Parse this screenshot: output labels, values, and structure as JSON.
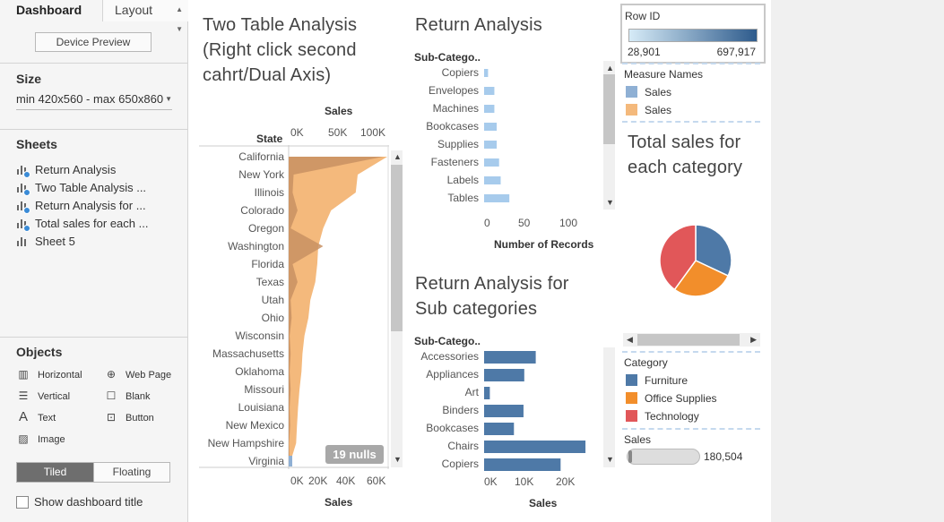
{
  "left_pane": {
    "tabs": {
      "dashboard": "Dashboard",
      "layout": "Layout"
    },
    "device_preview": "Device Preview",
    "size": {
      "title": "Size",
      "value": "min 420x560 - max 650x860"
    },
    "sheets": {
      "title": "Sheets",
      "items": [
        "Return Analysis",
        "Two Table Analysis ...",
        "Return Analysis for ...",
        "Total sales for each ...",
        "Sheet 5"
      ]
    },
    "objects": {
      "title": "Objects",
      "items": [
        "Horizontal",
        "Web Page",
        "Vertical",
        "Blank",
        "Text",
        "Button",
        "Image"
      ]
    },
    "tiled": "Tiled",
    "floating": "Floating",
    "show_title": "Show dashboard title"
  },
  "two_table": {
    "title_lines": [
      "Two Table Analysis",
      "(Right click second",
      "cahrt/Dual Axis)"
    ],
    "row_header": "State",
    "top_axis_title": "Sales",
    "bottom_axis_title": "Sales",
    "nulls_badge": "19 nulls"
  },
  "return_analysis": {
    "title": "Return Analysis",
    "row_header": "Sub-Catego..",
    "axis_title": "Number of Records"
  },
  "return_sub": {
    "title_lines": [
      "Return Analysis for",
      "Sub categories"
    ],
    "row_header": "Sub-Catego..",
    "axis_title": "Sales"
  },
  "total_sales": {
    "title_lines": [
      "Total sales for",
      "each category"
    ]
  },
  "legends": {
    "row_id": {
      "title": "Row ID",
      "min": "28,901",
      "max": "697,917"
    },
    "measure_names": {
      "title": "Measure Names",
      "items": [
        "Sales",
        "Sales"
      ],
      "colors": [
        "#8fb0d4",
        "#f4b97c"
      ]
    },
    "category": {
      "title": "Category",
      "items": [
        "Furniture",
        "Office Supplies",
        "Technology"
      ],
      "colors": [
        "#4e79a7",
        "#f28e2b",
        "#e15759"
      ]
    },
    "sales_filter": {
      "title": "Sales",
      "value": "180,504"
    }
  },
  "chart_data": [
    {
      "type": "area",
      "title": "Two Table Analysis (Right click second cahrt/Dual Axis)",
      "categories": [
        "California",
        "New York",
        "Illinois",
        "Colorado",
        "Oregon",
        "Washington",
        "Florida",
        "Texas",
        "Utah",
        "Ohio",
        "Wisconsin",
        "Massachusetts",
        "Oklahoma",
        "Missouri",
        "Louisiana",
        "New Mexico",
        "New Hampshire",
        "Virginia"
      ],
      "series": [
        {
          "name": "Sales",
          "values": [
            100000,
            70000,
            68000,
            43000,
            35000,
            30000,
            29000,
            27000,
            22000,
            20000,
            16000,
            14000,
            13000,
            11000,
            9500,
            8500,
            7500,
            2000
          ]
        },
        {
          "name": "Sales",
          "values": [
            96000,
            5000,
            4000,
            9000,
            2000,
            35000,
            4000,
            9000,
            2000,
            3000,
            1000,
            2000,
            1000,
            2000,
            1000,
            1500,
            500,
            1000
          ]
        }
      ],
      "top_axis": {
        "label": "Sales",
        "ticks": [
          "0K",
          "50K",
          "100K"
        ],
        "range": [
          0,
          100000
        ]
      },
      "bottom_axis": {
        "label": "Sales",
        "ticks": [
          "0K",
          "20K",
          "40K",
          "60K"
        ],
        "range": [
          0,
          100000
        ]
      },
      "ylabel": "State",
      "colors": [
        "#f4b97c",
        "#c89063"
      ]
    },
    {
      "type": "bar",
      "title": "Return Analysis",
      "categories": [
        "Copiers",
        "Envelopes",
        "Machines",
        "Bookcases",
        "Supplies",
        "Fasteners",
        "Labels",
        "Tables"
      ],
      "values": [
        5,
        13,
        13,
        16,
        16,
        19,
        21,
        32
      ],
      "xlabel": "Number of Records",
      "ylabel": "Sub-Catego..",
      "ticks": [
        "0",
        "50",
        "100"
      ],
      "xlim": [
        0,
        150
      ],
      "colors": [
        "#a7cbec"
      ]
    },
    {
      "type": "bar",
      "title": "Return Analysis for Sub categories",
      "categories": [
        "Accessories",
        "Appliances",
        "Art",
        "Binders",
        "Bookcases",
        "Chairs",
        "Copiers"
      ],
      "values": [
        13500,
        10500,
        1500,
        10300,
        7800,
        26500,
        20000
      ],
      "xlabel": "Sales",
      "ylabel": "Sub-Catego..",
      "ticks": [
        "0K",
        "10K",
        "20K"
      ],
      "xlim": [
        0,
        30000
      ],
      "colors": [
        "#4e79a7"
      ]
    },
    {
      "type": "pie",
      "title": "Total sales for each category",
      "categories": [
        "Furniture",
        "Office Supplies",
        "Technology"
      ],
      "values": [
        32,
        28,
        40
      ],
      "colors": [
        "#4e79a7",
        "#f28e2b",
        "#e15759"
      ]
    }
  ]
}
